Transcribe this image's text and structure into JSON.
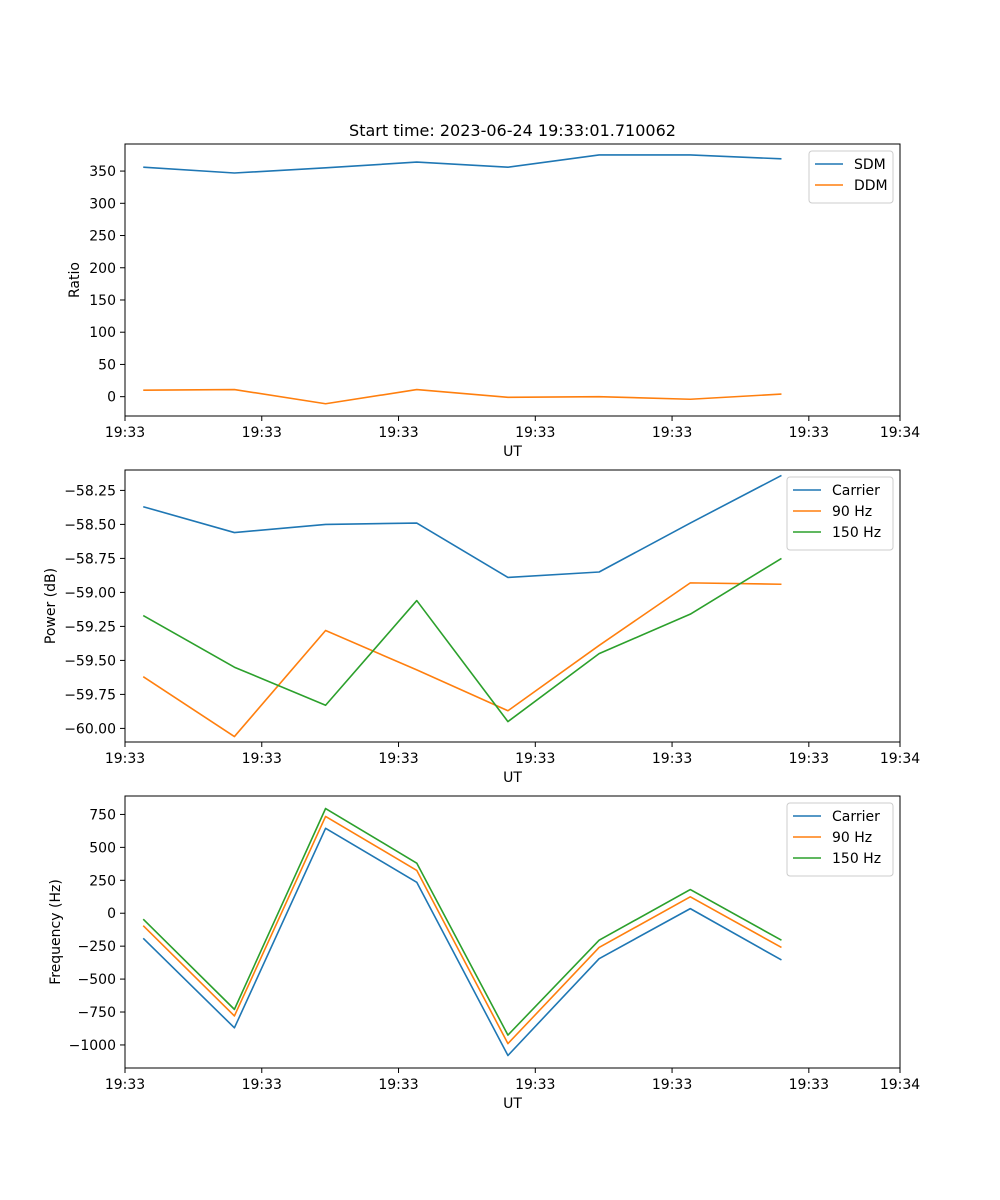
{
  "figure": {
    "title": "Start time: 2023-06-24 19:33:01.710062"
  },
  "colors": {
    "blue": "#1f77b4",
    "orange": "#ff7f0e",
    "green": "#2ca02c"
  },
  "chart_data": [
    {
      "type": "line",
      "title": "Start time: 2023-06-24 19:33:01.710062",
      "xlabel": "UT",
      "ylabel": "Ratio",
      "x": [
        1,
        2,
        3,
        4,
        5,
        6,
        7,
        8
      ],
      "xlim": [
        0.8,
        9.3
      ],
      "x_ticks": [
        {
          "x": 0.8,
          "label": "19:33"
        },
        {
          "x": 2.3,
          "label": "19:33"
        },
        {
          "x": 3.8,
          "label": "19:33"
        },
        {
          "x": 5.3,
          "label": "19:33"
        },
        {
          "x": 6.8,
          "label": "19:33"
        },
        {
          "x": 8.3,
          "label": "19:33"
        },
        {
          "x": 9.3,
          "label": "19:34"
        }
      ],
      "ylim": [
        -30,
        392
      ],
      "y_ticks": [
        0,
        50,
        100,
        150,
        200,
        250,
        300,
        350
      ],
      "legend": "top-right",
      "grid": false,
      "series": [
        {
          "name": "SDM",
          "color": "#1f77b4",
          "values": [
            356,
            347,
            355,
            364,
            356,
            375,
            375,
            369
          ]
        },
        {
          "name": "DDM",
          "color": "#ff7f0e",
          "values": [
            10,
            11,
            -11,
            11,
            -1,
            0,
            -4,
            4
          ]
        }
      ]
    },
    {
      "type": "line",
      "xlabel": "UT",
      "ylabel": "Power (dB)",
      "x": [
        1,
        2,
        3,
        4,
        5,
        6,
        7,
        8
      ],
      "xlim": [
        0.8,
        9.3
      ],
      "x_ticks": [
        {
          "x": 0.8,
          "label": "19:33"
        },
        {
          "x": 2.3,
          "label": "19:33"
        },
        {
          "x": 3.8,
          "label": "19:33"
        },
        {
          "x": 5.3,
          "label": "19:33"
        },
        {
          "x": 6.8,
          "label": "19:33"
        },
        {
          "x": 8.3,
          "label": "19:33"
        },
        {
          "x": 9.3,
          "label": "19:34"
        }
      ],
      "ylim": [
        -60.1,
        -58.1
      ],
      "y_ticks": [
        -60.0,
        -59.75,
        -59.5,
        -59.25,
        -59.0,
        -58.75,
        -58.5,
        -58.25
      ],
      "y_tick_labels": [
        "−60.00",
        "−59.75",
        "−59.50",
        "−59.25",
        "−59.00",
        "−58.75",
        "−58.50",
        "−58.25"
      ],
      "legend": "top-right",
      "grid": false,
      "series": [
        {
          "name": "Carrier",
          "color": "#1f77b4",
          "values": [
            -58.37,
            -58.56,
            -58.5,
            -58.49,
            -58.89,
            -58.85,
            -58.49,
            -58.14
          ]
        },
        {
          "name": "90 Hz",
          "color": "#ff7f0e",
          "values": [
            -59.62,
            -60.06,
            -59.28,
            -59.57,
            -59.87,
            -59.39,
            -58.93,
            -58.94
          ]
        },
        {
          "name": "150 Hz",
          "color": "#2ca02c",
          "values": [
            -59.17,
            -59.55,
            -59.83,
            -59.06,
            -59.95,
            -59.45,
            -59.16,
            -58.75
          ]
        }
      ]
    },
    {
      "type": "line",
      "xlabel": "UT",
      "ylabel": "Frequency (Hz)",
      "x": [
        1,
        2,
        3,
        4,
        5,
        6,
        7,
        8
      ],
      "xlim": [
        0.8,
        9.3
      ],
      "x_ticks": [
        {
          "x": 0.8,
          "label": "19:33"
        },
        {
          "x": 2.3,
          "label": "19:33"
        },
        {
          "x": 3.8,
          "label": "19:33"
        },
        {
          "x": 5.3,
          "label": "19:33"
        },
        {
          "x": 6.8,
          "label": "19:33"
        },
        {
          "x": 8.3,
          "label": "19:33"
        },
        {
          "x": 9.3,
          "label": "19:34"
        }
      ],
      "ylim": [
        -1175,
        890
      ],
      "y_ticks": [
        -1000,
        -750,
        -500,
        -250,
        0,
        250,
        500,
        750
      ],
      "y_tick_labels": [
        "−1000",
        "−750",
        "−500",
        "−250",
        "0",
        "250",
        "500",
        "750"
      ],
      "legend": "top-right",
      "grid": false,
      "series": [
        {
          "name": "Carrier",
          "color": "#1f77b4",
          "values": [
            -190,
            -870,
            645,
            235,
            -1080,
            -345,
            35,
            -355
          ]
        },
        {
          "name": "90 Hz",
          "color": "#ff7f0e",
          "values": [
            -95,
            -780,
            735,
            325,
            -990,
            -260,
            125,
            -260
          ]
        },
        {
          "name": "150 Hz",
          "color": "#2ca02c",
          "values": [
            -45,
            -730,
            795,
            380,
            -925,
            -205,
            180,
            -205
          ]
        }
      ]
    }
  ]
}
